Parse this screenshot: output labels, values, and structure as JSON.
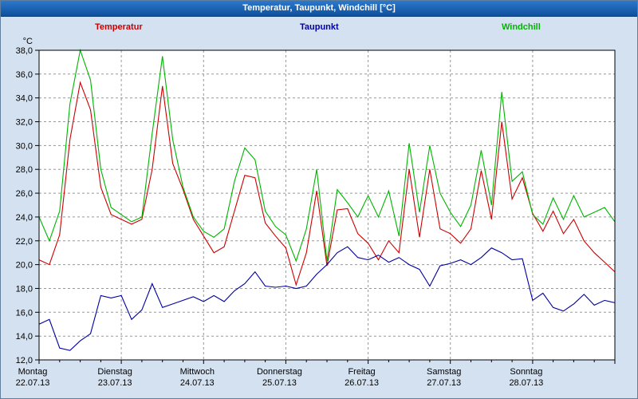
{
  "window": {
    "title": "Temperatur, Taupunkt, Windchill [°C]"
  },
  "legend": [
    {
      "label": "Temperatur",
      "color": "#cc0000"
    },
    {
      "label": "Taupunkt",
      "color": "#0000a0"
    },
    {
      "label": "Windchill",
      "color": "#00b400"
    }
  ],
  "chart_data": {
    "type": "line",
    "title": "Temperatur, Taupunkt, Windchill [°C]",
    "y_unit": "°C",
    "y_min": 12,
    "y_max": 38,
    "y_step": 2,
    "y_tick_labels": [
      "38,0",
      "36,0",
      "34,0",
      "32,0",
      "30,0",
      "28,0",
      "26,0",
      "24,0",
      "22,0",
      "20,0",
      "18,0",
      "16,0",
      "14,0",
      "12,0"
    ],
    "x_ticks": [
      {
        "day": "Montag",
        "date": "22.07.13"
      },
      {
        "day": "Dienstag",
        "date": "23.07.13"
      },
      {
        "day": "Mittwoch",
        "date": "24.07.13"
      },
      {
        "day": "Donnerstag",
        "date": "25.07.13"
      },
      {
        "day": "Freitag",
        "date": "26.07.13"
      },
      {
        "day": "Samstag",
        "date": "27.07.13"
      },
      {
        "day": "Sonntag",
        "date": "28.07.13"
      }
    ],
    "x_days_total": 7,
    "x_step_hours": 3,
    "grid": "dashed",
    "legend_position": "top",
    "series": [
      {
        "name": "Temperatur",
        "color": "#cc0000",
        "values": [
          20.4,
          20.0,
          22.5,
          30.5,
          35.3,
          33.0,
          26.5,
          24.2,
          23.8,
          23.4,
          23.8,
          28.0,
          35.0,
          28.5,
          26.3,
          23.8,
          22.4,
          21.0,
          21.5,
          24.5,
          27.5,
          27.3,
          23.5,
          22.4,
          21.4,
          18.3,
          21.0,
          26.2,
          19.9,
          24.6,
          24.7,
          22.6,
          21.8,
          20.4,
          22.0,
          21.0,
          28.0,
          22.3,
          28.0,
          23.0,
          22.6,
          21.8,
          23.0,
          27.9,
          23.8,
          32.0,
          25.5,
          27.3,
          24.3,
          22.8,
          24.5,
          22.6,
          23.8,
          22.0,
          21.0,
          20.2,
          19.4
        ]
      },
      {
        "name": "Taupunkt",
        "color": "#0000a0",
        "values": [
          15.0,
          15.4,
          13.0,
          12.8,
          13.6,
          14.2,
          17.4,
          17.2,
          17.4,
          15.4,
          16.2,
          18.4,
          16.4,
          16.7,
          17.0,
          17.3,
          16.9,
          17.4,
          16.9,
          17.8,
          18.4,
          19.4,
          18.2,
          18.1,
          18.2,
          18.0,
          18.2,
          19.2,
          20.0,
          21.0,
          21.5,
          20.6,
          20.4,
          20.8,
          20.2,
          20.6,
          20.0,
          19.6,
          18.2,
          19.9,
          20.1,
          20.4,
          20.0,
          20.6,
          21.4,
          21.0,
          20.4,
          20.5,
          17.0,
          17.6,
          16.4,
          16.1,
          16.7,
          17.5,
          16.6,
          17.0,
          16.8
        ]
      },
      {
        "name": "Windchill",
        "color": "#00b400",
        "values": [
          24.0,
          22.0,
          24.5,
          33.5,
          38.0,
          35.5,
          28.0,
          24.8,
          24.2,
          23.6,
          24.0,
          31.0,
          37.5,
          30.5,
          26.5,
          24.0,
          22.8,
          22.3,
          23.0,
          27.0,
          29.8,
          28.8,
          24.5,
          23.2,
          22.5,
          20.3,
          23.0,
          28.0,
          20.3,
          26.3,
          25.2,
          24.0,
          25.8,
          24.0,
          26.2,
          22.4,
          30.2,
          24.4,
          30.0,
          26.0,
          24.4,
          23.2,
          25.0,
          29.6,
          25.0,
          34.5,
          27.0,
          27.8,
          24.2,
          23.4,
          25.6,
          23.8,
          25.8,
          24.0,
          24.4,
          24.8,
          23.6
        ]
      }
    ]
  }
}
